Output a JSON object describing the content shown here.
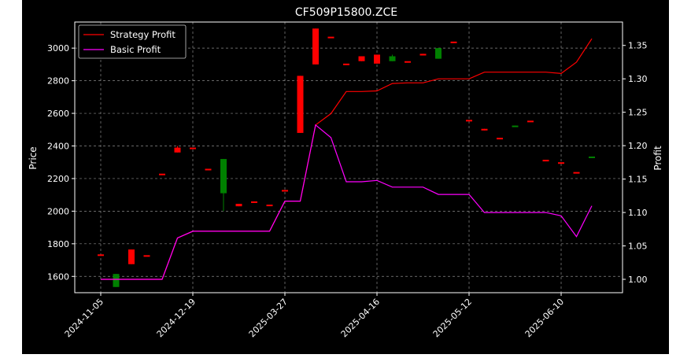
{
  "chart_data": {
    "type": "candlestick+line",
    "title": "CF509P15800.ZCE",
    "xlabel": "",
    "ylabel_left": "Price",
    "ylabel_right": "Profit",
    "ylim_left": [
      1500,
      3160
    ],
    "ylim_right": [
      0.98,
      1.385
    ],
    "grid": true,
    "legend_placement": "top-left",
    "x_tick_labels": [
      "2024-11-05",
      "2024-12-19",
      "2025-03-27",
      "2025-04-16",
      "2025-05-12",
      "2025-06-10"
    ],
    "x_tick_index": [
      0,
      6,
      12,
      18,
      24,
      30
    ],
    "colors": {
      "up": "#008000",
      "down": "#ff0000",
      "strategy": "#ff0000",
      "basic": "#ff00ff",
      "background": "#000000",
      "foreground": "#ffffff"
    },
    "candles": [
      {
        "i": 0,
        "open": 1735,
        "high": 1735,
        "low": 1735,
        "close": 1735
      },
      {
        "i": 1,
        "open": 1535,
        "high": 1615,
        "low": 1535,
        "close": 1615
      },
      {
        "i": 2,
        "open": 1765,
        "high": 1765,
        "low": 1675,
        "close": 1675
      },
      {
        "i": 3,
        "open": 1730,
        "high": 1730,
        "low": 1730,
        "close": 1730
      },
      {
        "i": 4,
        "open": 2230,
        "high": 2230,
        "low": 2230,
        "close": 2230
      },
      {
        "i": 5,
        "open": 2390,
        "high": 2400,
        "low": 2360,
        "close": 2360
      },
      {
        "i": 6,
        "open": 2390,
        "high": 2390,
        "low": 2390,
        "close": 2390
      },
      {
        "i": 7,
        "open": 2260,
        "high": 2260,
        "low": 2260,
        "close": 2260
      },
      {
        "i": 8,
        "open": 2110,
        "high": 2320,
        "low": 2000,
        "close": 2320
      },
      {
        "i": 9,
        "open": 2045,
        "high": 2045,
        "low": 2030,
        "close": 2030
      },
      {
        "i": 10,
        "open": 2060,
        "high": 2060,
        "low": 2060,
        "close": 2060
      },
      {
        "i": 11,
        "open": 2040,
        "high": 2040,
        "low": 2040,
        "close": 2040
      },
      {
        "i": 12,
        "open": 2130,
        "high": 2130,
        "low": 2130,
        "close": 2130
      },
      {
        "i": 13,
        "open": 2830,
        "high": 2830,
        "low": 2480,
        "close": 2480
      },
      {
        "i": 14,
        "open": 3120,
        "high": 3120,
        "low": 2900,
        "close": 2900
      },
      {
        "i": 15,
        "open": 3070,
        "high": 3070,
        "low": 3070,
        "close": 3070
      },
      {
        "i": 16,
        "open": 2905,
        "high": 2905,
        "low": 2905,
        "close": 2905
      },
      {
        "i": 17,
        "open": 2950,
        "high": 2950,
        "low": 2920,
        "close": 2920
      },
      {
        "i": 18,
        "open": 2960,
        "high": 2960,
        "low": 2905,
        "close": 2905
      },
      {
        "i": 19,
        "open": 2920,
        "high": 2960,
        "low": 2920,
        "close": 2950
      },
      {
        "i": 20,
        "open": 2920,
        "high": 2920,
        "low": 2920,
        "close": 2920
      },
      {
        "i": 21,
        "open": 2965,
        "high": 2965,
        "low": 2955,
        "close": 2955
      },
      {
        "i": 22,
        "open": 2935,
        "high": 3000,
        "low": 2935,
        "close": 3000
      },
      {
        "i": 23,
        "open": 3040,
        "high": 3040,
        "low": 3040,
        "close": 3040
      },
      {
        "i": 24,
        "open": 2560,
        "high": 2560,
        "low": 2560,
        "close": 2560
      },
      {
        "i": 25,
        "open": 2505,
        "high": 2505,
        "low": 2495,
        "close": 2495
      },
      {
        "i": 26,
        "open": 2450,
        "high": 2450,
        "low": 2450,
        "close": 2450
      },
      {
        "i": 27,
        "open": 2520,
        "high": 2525,
        "low": 2520,
        "close": 2525
      },
      {
        "i": 28,
        "open": 2555,
        "high": 2555,
        "low": 2555,
        "close": 2555
      },
      {
        "i": 29,
        "open": 2315,
        "high": 2315,
        "low": 2315,
        "close": 2315
      },
      {
        "i": 30,
        "open": 2300,
        "high": 2300,
        "low": 2300,
        "close": 2300
      },
      {
        "i": 31,
        "open": 2240,
        "high": 2240,
        "low": 2240,
        "close": 2240
      },
      {
        "i": 32,
        "open": 2330,
        "high": 2335,
        "low": 2330,
        "close": 2335
      }
    ],
    "series": [
      {
        "name": "Strategy Profit",
        "axis": "right",
        "x": [
          0,
          1,
          2,
          3,
          4,
          5,
          6,
          7,
          8,
          9,
          10,
          11,
          12,
          13,
          14,
          15,
          16,
          17,
          18,
          19,
          20,
          21,
          22,
          23,
          24,
          25,
          26,
          27,
          28,
          29,
          30,
          31,
          32
        ],
        "values": [
          1.0,
          1.0,
          1.0,
          1.0,
          1.0,
          1.062,
          1.072,
          1.072,
          1.072,
          1.072,
          1.072,
          1.072,
          1.117,
          1.117,
          1.231,
          1.248,
          1.281,
          1.281,
          1.282,
          1.293,
          1.294,
          1.294,
          1.3,
          1.3,
          1.3,
          1.31,
          1.31,
          1.31,
          1.31,
          1.31,
          1.308,
          1.325,
          1.36
        ]
      },
      {
        "name": "Basic Profit",
        "axis": "right",
        "x": [
          0,
          1,
          2,
          3,
          4,
          5,
          6,
          7,
          8,
          9,
          10,
          11,
          12,
          13,
          14,
          15,
          16,
          17,
          18,
          19,
          20,
          21,
          22,
          23,
          24,
          25,
          26,
          27,
          28,
          29,
          30,
          31,
          32
        ],
        "values": [
          1.0,
          1.0,
          1.0,
          1.0,
          1.0,
          1.062,
          1.072,
          1.072,
          1.072,
          1.072,
          1.072,
          1.072,
          1.117,
          1.117,
          1.231,
          1.212,
          1.146,
          1.146,
          1.148,
          1.138,
          1.138,
          1.138,
          1.127,
          1.127,
          1.127,
          1.1,
          1.1,
          1.1,
          1.1,
          1.1,
          1.095,
          1.064,
          1.11
        ]
      }
    ],
    "y_ticks_left": [
      1600,
      1800,
      2000,
      2200,
      2400,
      2600,
      2800,
      3000
    ],
    "y_ticks_right": [
      1.0,
      1.05,
      1.1,
      1.15,
      1.2,
      1.25,
      1.3,
      1.35
    ],
    "y_tick_labels_right": [
      "1.00",
      "1.05",
      "1.10",
      "1.15",
      "1.20",
      "1.25",
      "1.30",
      "1.35"
    ]
  }
}
